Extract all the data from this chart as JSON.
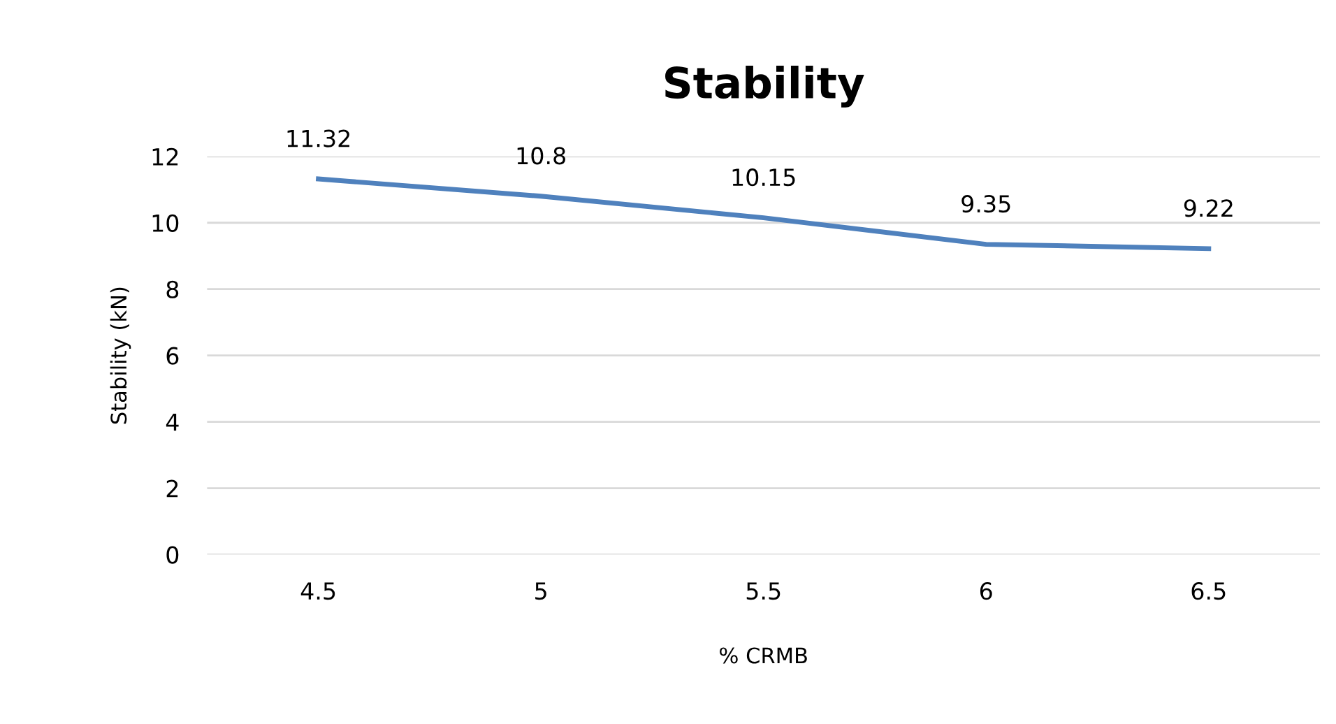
{
  "chart_data": {
    "type": "line",
    "title": "Stability",
    "xlabel": "% CRMB",
    "ylabel": "Stability (kN)",
    "categories": [
      "4.5",
      "5",
      "5.5",
      "6",
      "6.5"
    ],
    "series": [
      {
        "color": "#4f81bd",
        "values": [
          11.32,
          10.8,
          10.15,
          9.35,
          9.22
        ]
      }
    ],
    "data_labels": true,
    "ylim": [
      0,
      12
    ],
    "yticks": [
      0,
      2,
      4,
      6,
      8,
      10,
      12
    ],
    "grid": "y",
    "marker": "none",
    "line_style": "solid"
  }
}
